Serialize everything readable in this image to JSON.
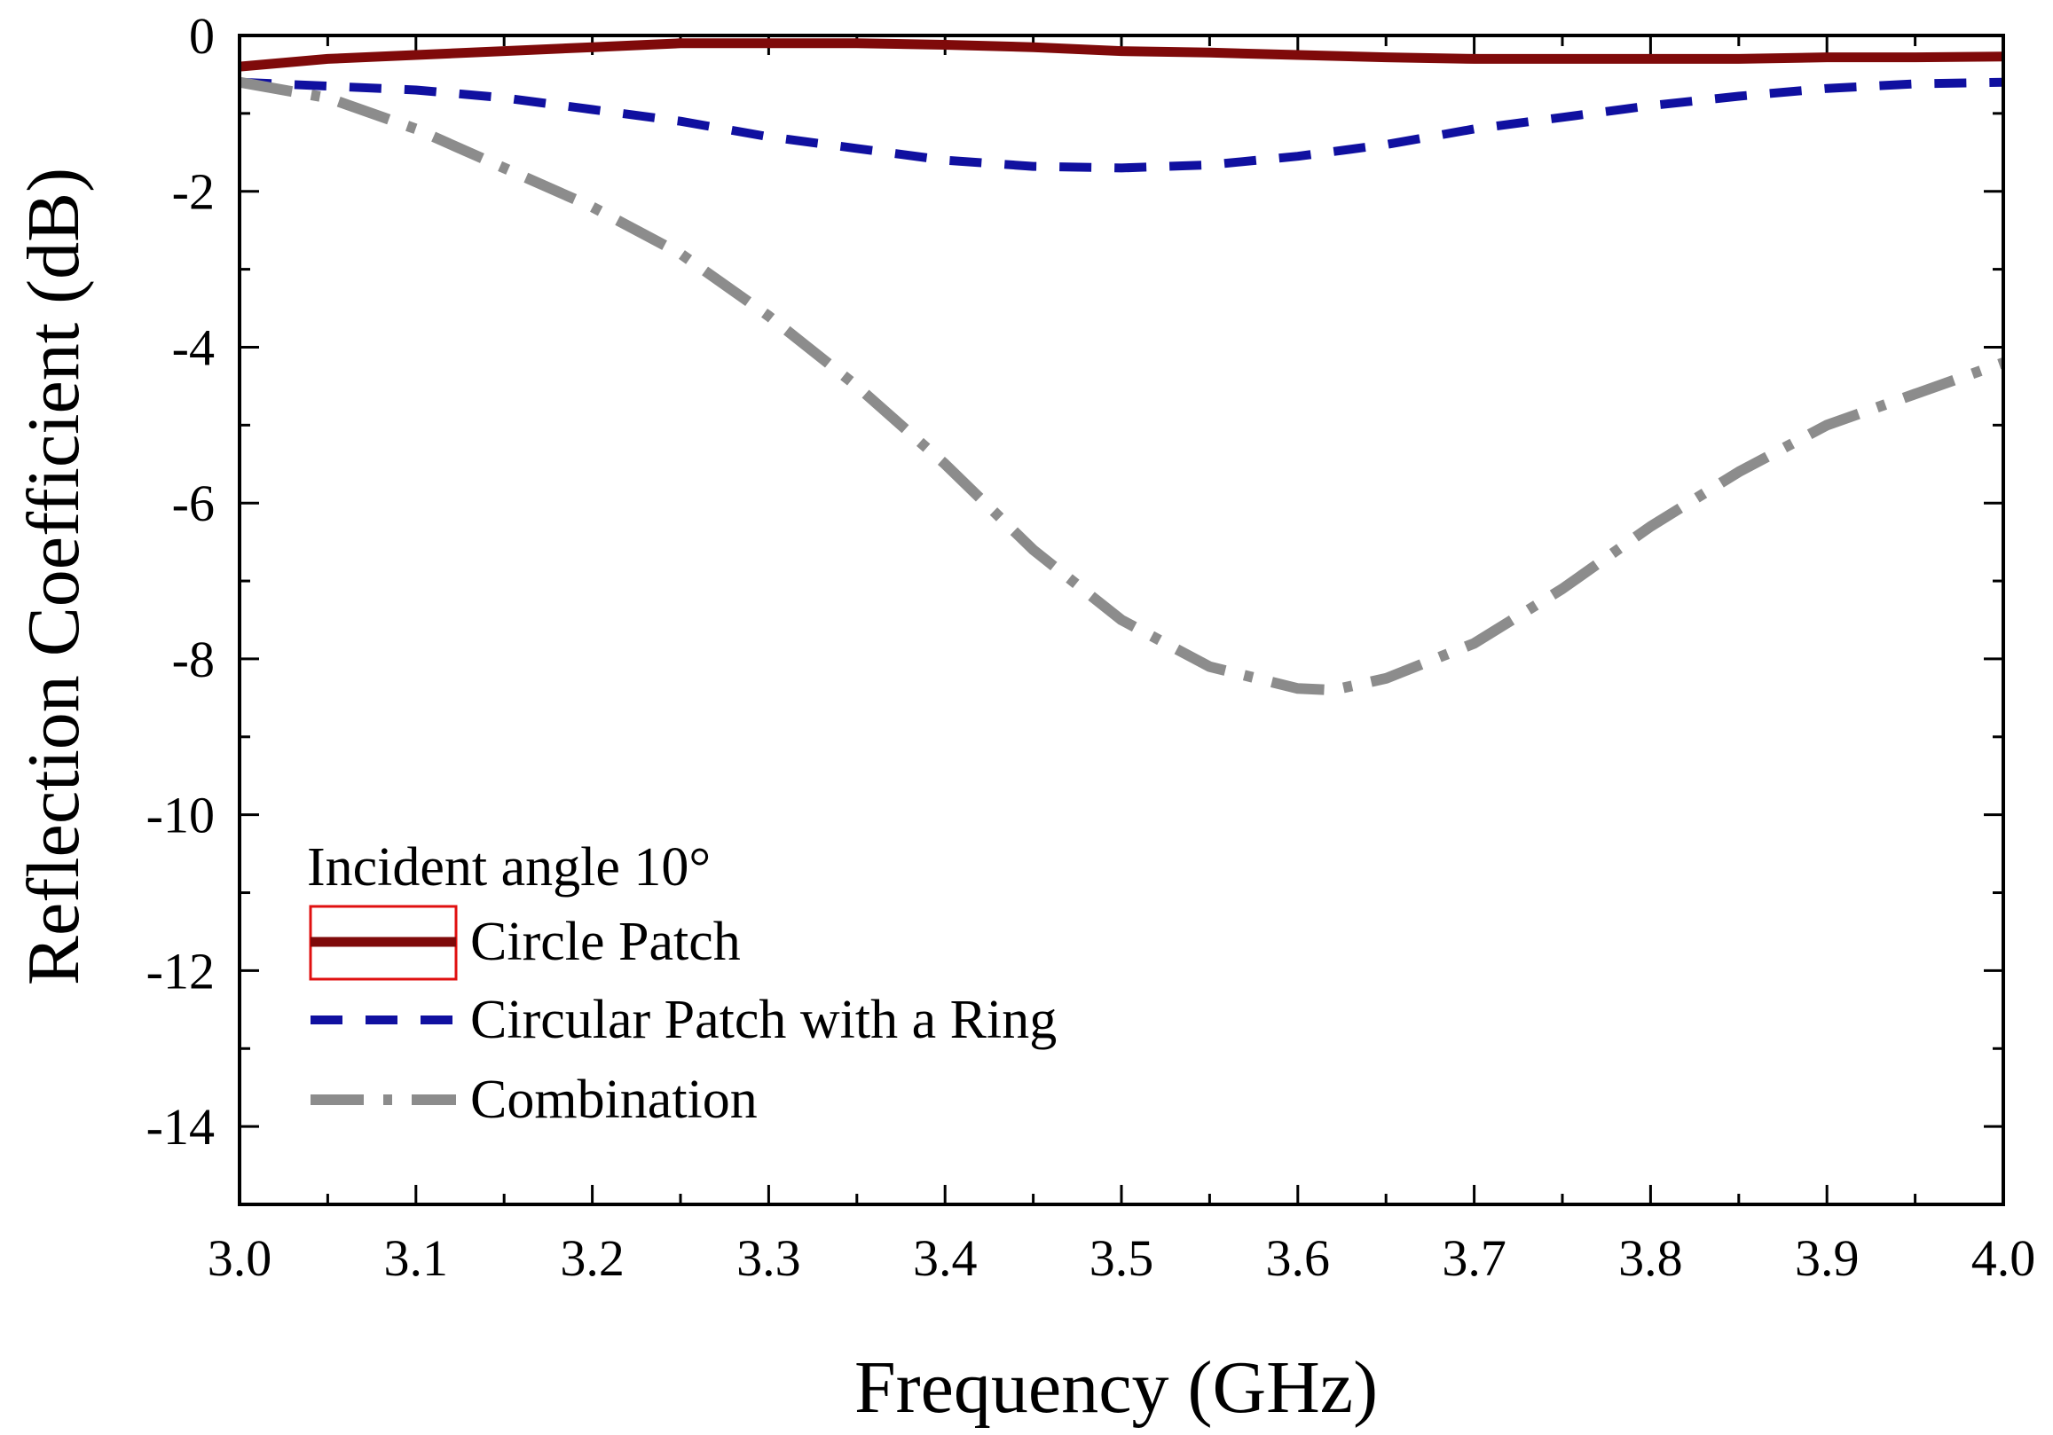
{
  "chart_data": {
    "type": "line",
    "title": "",
    "xlabel": "Frequency (GHz)",
    "ylabel": "Reflection Coefficient (dB)",
    "xlim": [
      3.0,
      4.0
    ],
    "ylim": [
      -15,
      0
    ],
    "x_ticks": [
      "3.0",
      "3.1",
      "3.2",
      "3.3",
      "3.4",
      "3.5",
      "3.6",
      "3.7",
      "3.8",
      "3.9",
      "4.0"
    ],
    "y_ticks": [
      "0",
      "-2",
      "-4",
      "-6",
      "-8",
      "-10",
      "-12",
      "-14"
    ],
    "legend_title": "Incident angle 10°",
    "legend_position": "lower-left",
    "grid": false,
    "series": [
      {
        "name": "Circle Patch",
        "color": "#7f0a0a",
        "style": "solid",
        "x": [
          3.0,
          3.05,
          3.1,
          3.15,
          3.2,
          3.25,
          3.3,
          3.35,
          3.4,
          3.45,
          3.5,
          3.55,
          3.6,
          3.65,
          3.7,
          3.75,
          3.8,
          3.85,
          3.9,
          3.95,
          4.0
        ],
        "y": [
          -0.4,
          -0.3,
          -0.25,
          -0.2,
          -0.15,
          -0.1,
          -0.1,
          -0.1,
          -0.12,
          -0.15,
          -0.2,
          -0.22,
          -0.25,
          -0.28,
          -0.3,
          -0.3,
          -0.3,
          -0.3,
          -0.28,
          -0.28,
          -0.27
        ]
      },
      {
        "name": "Circular Patch with a Ring",
        "color": "#1010a0",
        "style": "dashed",
        "x": [
          3.0,
          3.05,
          3.1,
          3.15,
          3.2,
          3.25,
          3.3,
          3.35,
          3.4,
          3.45,
          3.5,
          3.55,
          3.6,
          3.65,
          3.7,
          3.75,
          3.8,
          3.85,
          3.9,
          3.95,
          4.0
        ],
        "y": [
          -0.6,
          -0.65,
          -0.7,
          -0.8,
          -0.95,
          -1.1,
          -1.3,
          -1.45,
          -1.6,
          -1.68,
          -1.7,
          -1.66,
          -1.55,
          -1.4,
          -1.2,
          -1.05,
          -0.9,
          -0.78,
          -0.68,
          -0.62,
          -0.6
        ]
      },
      {
        "name": "Combination",
        "color": "#8c8c8c",
        "style": "dashdot",
        "x": [
          3.0,
          3.05,
          3.1,
          3.15,
          3.2,
          3.25,
          3.3,
          3.35,
          3.4,
          3.45,
          3.5,
          3.55,
          3.6,
          3.62,
          3.65,
          3.7,
          3.75,
          3.8,
          3.85,
          3.9,
          3.95,
          4.0
        ],
        "y": [
          -0.6,
          -0.8,
          -1.2,
          -1.7,
          -2.2,
          -2.8,
          -3.6,
          -4.5,
          -5.5,
          -6.6,
          -7.5,
          -8.1,
          -8.38,
          -8.4,
          -8.25,
          -7.8,
          -7.1,
          -6.3,
          -5.6,
          -5.0,
          -4.6,
          -4.2
        ]
      }
    ]
  }
}
